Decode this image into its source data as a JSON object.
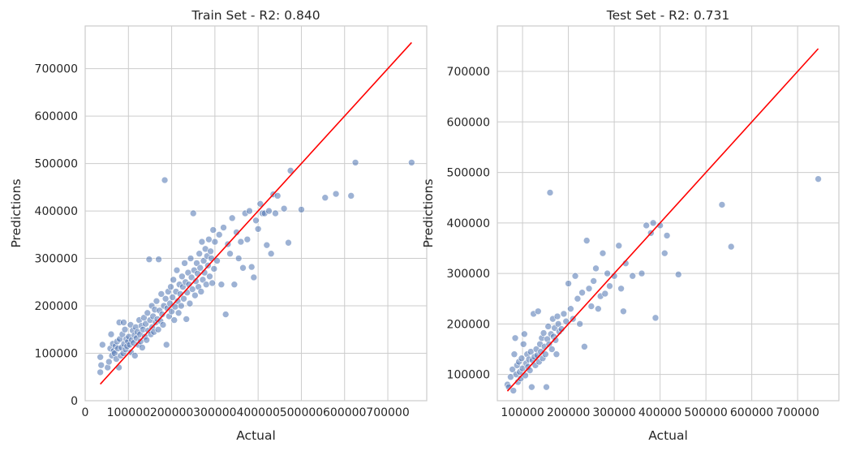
{
  "chart_data": [
    {
      "type": "scatter",
      "title": "Train Set - R2: 0.840",
      "xlabel": "Actual",
      "ylabel": "Predictions",
      "xlim": [
        0,
        790000
      ],
      "ylim": [
        0,
        790000
      ],
      "xticks": [
        0,
        100000,
        200000,
        300000,
        400000,
        500000,
        600000,
        700000
      ],
      "xtick_labels": [
        "0",
        "100000",
        "200000",
        "300000",
        "400000",
        "500000",
        "600000",
        "700000"
      ],
      "yticks": [
        0,
        100000,
        200000,
        300000,
        400000,
        500000,
        600000,
        700000
      ],
      "ytick_labels": [
        "0",
        "100000",
        "200000",
        "300000",
        "400000",
        "500000",
        "600000",
        "700000"
      ],
      "grid": true,
      "point_color": "#4c72b0",
      "line_color": "#ff0000",
      "reference_line": [
        [
          34900,
          34900
        ],
        [
          755000,
          755000
        ]
      ],
      "points": [
        [
          34900,
          60000
        ],
        [
          35000,
          92000
        ],
        [
          37000,
          75000
        ],
        [
          40000,
          118000
        ],
        [
          52000,
          70000
        ],
        [
          55000,
          82000
        ],
        [
          58000,
          110000
        ],
        [
          60000,
          140000
        ],
        [
          62000,
          95000
        ],
        [
          64000,
          120000
        ],
        [
          66000,
          105000
        ],
        [
          68000,
          100000
        ],
        [
          70000,
          115000
        ],
        [
          72000,
          88000
        ],
        [
          74000,
          125000
        ],
        [
          76000,
          110000
        ],
        [
          78000,
          70000
        ],
        [
          79000,
          165000
        ],
        [
          80000,
          130000
        ],
        [
          82000,
          95000
        ],
        [
          84000,
          112000
        ],
        [
          86000,
          140000
        ],
        [
          88000,
          100000
        ],
        [
          89000,
          165000
        ],
        [
          90000,
          120000
        ],
        [
          92000,
          150000
        ],
        [
          94000,
          108000
        ],
        [
          95000,
          130000
        ],
        [
          97000,
          115000
        ],
        [
          99000,
          125000
        ],
        [
          101000,
          135000
        ],
        [
          103000,
          118000
        ],
        [
          105000,
          160000
        ],
        [
          106000,
          102000
        ],
        [
          108000,
          128000
        ],
        [
          110000,
          148000
        ],
        [
          112000,
          122000
        ],
        [
          114000,
          138000
        ],
        [
          115000,
          95000
        ],
        [
          117000,
          155000
        ],
        [
          119000,
          132000
        ],
        [
          121000,
          145000
        ],
        [
          123000,
          118000
        ],
        [
          125000,
          170000
        ],
        [
          127000,
          140000
        ],
        [
          128000,
          125000
        ],
        [
          130000,
          158000
        ],
        [
          132000,
          112000
        ],
        [
          134000,
          150000
        ],
        [
          136000,
          175000
        ],
        [
          138000,
          135000
        ],
        [
          140000,
          162000
        ],
        [
          142000,
          128000
        ],
        [
          144000,
          185000
        ],
        [
          146000,
          148000
        ],
        [
          148000,
          298000
        ],
        [
          150000,
          170000
        ],
        [
          152000,
          140000
        ],
        [
          154000,
          200000
        ],
        [
          155000,
          155000
        ],
        [
          157000,
          178000
        ],
        [
          159000,
          145000
        ],
        [
          161000,
          192000
        ],
        [
          163000,
          165000
        ],
        [
          165000,
          210000
        ],
        [
          167000,
          172000
        ],
        [
          169000,
          150000
        ],
        [
          170000,
          298000
        ],
        [
          172000,
          190000
        ],
        [
          174000,
          168000
        ],
        [
          176000,
          225000
        ],
        [
          178000,
          182000
        ],
        [
          180000,
          160000
        ],
        [
          182000,
          200000
        ],
        [
          184000,
          465000
        ],
        [
          186000,
          215000
        ],
        [
          188000,
          118000
        ],
        [
          190000,
          195000
        ],
        [
          192000,
          230000
        ],
        [
          194000,
          178000
        ],
        [
          196000,
          205000
        ],
        [
          198000,
          240000
        ],
        [
          200000,
          188000
        ],
        [
          202000,
          218000
        ],
        [
          204000,
          255000
        ],
        [
          206000,
          170000
        ],
        [
          208000,
          198000
        ],
        [
          210000,
          230000
        ],
        [
          212000,
          275000
        ],
        [
          214000,
          210000
        ],
        [
          216000,
          185000
        ],
        [
          218000,
          245000
        ],
        [
          220000,
          225000
        ],
        [
          222000,
          200000
        ],
        [
          224000,
          262000
        ],
        [
          226000,
          240000
        ],
        [
          228000,
          215000
        ],
        [
          230000,
          290000
        ],
        [
          232000,
          250000
        ],
        [
          234000,
          172000
        ],
        [
          236000,
          228000
        ],
        [
          238000,
          270000
        ],
        [
          240000,
          245000
        ],
        [
          242000,
          205000
        ],
        [
          244000,
          300000
        ],
        [
          246000,
          260000
        ],
        [
          248000,
          235000
        ],
        [
          250000,
          395000
        ],
        [
          252000,
          275000
        ],
        [
          254000,
          222000
        ],
        [
          256000,
          252000
        ],
        [
          258000,
          290000
        ],
        [
          260000,
          268000
        ],
        [
          262000,
          240000
        ],
        [
          264000,
          310000
        ],
        [
          266000,
          280000
        ],
        [
          268000,
          230000
        ],
        [
          270000,
          335000
        ],
        [
          272000,
          255000
        ],
        [
          274000,
          295000
        ],
        [
          276000,
          270000
        ],
        [
          278000,
          320000
        ],
        [
          280000,
          245000
        ],
        [
          282000,
          305000
        ],
        [
          284000,
          285000
        ],
        [
          286000,
          340000
        ],
        [
          288000,
          262000
        ],
        [
          290000,
          315000
        ],
        [
          292000,
          300000
        ],
        [
          294000,
          248000
        ],
        [
          296000,
          360000
        ],
        [
          298000,
          278000
        ],
        [
          300000,
          335000
        ],
        [
          305000,
          295000
        ],
        [
          310000,
          350000
        ],
        [
          315000,
          245000
        ],
        [
          320000,
          365000
        ],
        [
          325000,
          182000
        ],
        [
          330000,
          330000
        ],
        [
          335000,
          310000
        ],
        [
          340000,
          385000
        ],
        [
          345000,
          245000
        ],
        [
          350000,
          355000
        ],
        [
          355000,
          300000
        ],
        [
          360000,
          335000
        ],
        [
          365000,
          280000
        ],
        [
          370000,
          395000
        ],
        [
          375000,
          340000
        ],
        [
          380000,
          400000
        ],
        [
          385000,
          282000
        ],
        [
          390000,
          260000
        ],
        [
          395000,
          380000
        ],
        [
          400000,
          362000
        ],
        [
          405000,
          415000
        ],
        [
          410000,
          395000
        ],
        [
          415000,
          395000
        ],
        [
          420000,
          328000
        ],
        [
          425000,
          400000
        ],
        [
          430000,
          310000
        ],
        [
          435000,
          435000
        ],
        [
          440000,
          395000
        ],
        [
          445000,
          432000
        ],
        [
          460000,
          405000
        ],
        [
          470000,
          333000
        ],
        [
          475000,
          485000
        ],
        [
          500000,
          403000
        ],
        [
          555000,
          428000
        ],
        [
          580000,
          436000
        ],
        [
          615000,
          432000
        ],
        [
          625000,
          502000
        ],
        [
          755000,
          502000
        ]
      ]
    },
    {
      "type": "scatter",
      "title": "Test Set - R2: 0.731",
      "xlabel": "Actual",
      "ylabel": "Predictions",
      "xlim": [
        45000,
        790000
      ],
      "ylim": [
        48000,
        790000
      ],
      "xticks": [
        100000,
        200000,
        300000,
        400000,
        500000,
        600000,
        700000
      ],
      "xtick_labels": [
        "100000",
        "200000",
        "300000",
        "400000",
        "500000",
        "600000",
        "700000"
      ],
      "yticks": [
        100000,
        200000,
        300000,
        400000,
        500000,
        600000,
        700000
      ],
      "ytick_labels": [
        "100000",
        "200000",
        "300000",
        "400000",
        "500000",
        "600000",
        "700000"
      ],
      "grid": true,
      "point_color": "#4c72b0",
      "line_color": "#ff0000",
      "reference_line": [
        [
          67000,
          67000
        ],
        [
          745000,
          745000
        ]
      ],
      "points": [
        [
          67000,
          80000
        ],
        [
          70000,
          75000
        ],
        [
          74000,
          95000
        ],
        [
          78000,
          110000
        ],
        [
          80000,
          68000
        ],
        [
          82000,
          140000
        ],
        [
          84000,
          172000
        ],
        [
          86000,
          100000
        ],
        [
          88000,
          118000
        ],
        [
          90000,
          85000
        ],
        [
          92000,
          125000
        ],
        [
          94000,
          105000
        ],
        [
          96000,
          92000
        ],
        [
          98000,
          132000
        ],
        [
          100000,
          112000
        ],
        [
          102000,
          160000
        ],
        [
          104000,
          180000
        ],
        [
          106000,
          98000
        ],
        [
          108000,
          122000
        ],
        [
          110000,
          140000
        ],
        [
          112000,
          115000
        ],
        [
          114000,
          130000
        ],
        [
          116000,
          108000
        ],
        [
          118000,
          145000
        ],
        [
          120000,
          75000
        ],
        [
          122000,
          128000
        ],
        [
          124000,
          220000
        ],
        [
          126000,
          135000
        ],
        [
          128000,
          118000
        ],
        [
          130000,
          150000
        ],
        [
          132000,
          138000
        ],
        [
          134000,
          225000
        ],
        [
          136000,
          125000
        ],
        [
          138000,
          160000
        ],
        [
          140000,
          145000
        ],
        [
          142000,
          172000
        ],
        [
          144000,
          132000
        ],
        [
          146000,
          182000
        ],
        [
          148000,
          155000
        ],
        [
          150000,
          140000
        ],
        [
          152000,
          75000
        ],
        [
          154000,
          170000
        ],
        [
          156000,
          195000
        ],
        [
          158000,
          160000
        ],
        [
          160000,
          460000
        ],
        [
          162000,
          180000
        ],
        [
          164000,
          150000
        ],
        [
          166000,
          210000
        ],
        [
          168000,
          175000
        ],
        [
          170000,
          192000
        ],
        [
          172000,
          168000
        ],
        [
          174000,
          140000
        ],
        [
          176000,
          215000
        ],
        [
          178000,
          200000
        ],
        [
          180000,
          185000
        ],
        [
          185000,
          190000
        ],
        [
          190000,
          220000
        ],
        [
          195000,
          205000
        ],
        [
          200000,
          280000
        ],
        [
          205000,
          230000
        ],
        [
          210000,
          210000
        ],
        [
          215000,
          295000
        ],
        [
          220000,
          250000
        ],
        [
          225000,
          200000
        ],
        [
          230000,
          262000
        ],
        [
          235000,
          155000
        ],
        [
          240000,
          365000
        ],
        [
          245000,
          270000
        ],
        [
          250000,
          235000
        ],
        [
          255000,
          285000
        ],
        [
          260000,
          310000
        ],
        [
          265000,
          230000
        ],
        [
          270000,
          255000
        ],
        [
          275000,
          340000
        ],
        [
          280000,
          260000
        ],
        [
          285000,
          300000
        ],
        [
          290000,
          275000
        ],
        [
          300000,
          295000
        ],
        [
          310000,
          355000
        ],
        [
          315000,
          270000
        ],
        [
          320000,
          225000
        ],
        [
          325000,
          320000
        ],
        [
          340000,
          295000
        ],
        [
          360000,
          300000
        ],
        [
          370000,
          395000
        ],
        [
          380000,
          380000
        ],
        [
          385000,
          400000
        ],
        [
          390000,
          212000
        ],
        [
          400000,
          395000
        ],
        [
          410000,
          340000
        ],
        [
          415000,
          375000
        ],
        [
          440000,
          298000
        ],
        [
          535000,
          436000
        ],
        [
          555000,
          353000
        ],
        [
          745000,
          487000
        ]
      ]
    }
  ]
}
